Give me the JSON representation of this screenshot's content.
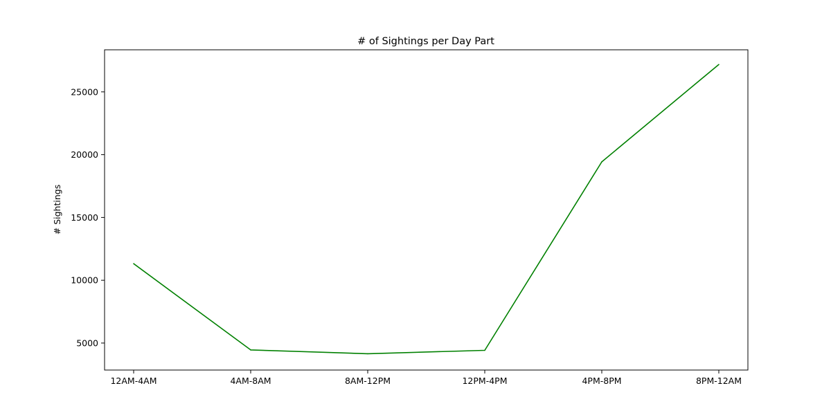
{
  "chart_data": {
    "type": "line",
    "title": "# of Sightings per Day Part",
    "xlabel": "",
    "ylabel": "# Sightings",
    "categories": [
      "12AM-4AM",
      "4AM-8AM",
      "8AM-12PM",
      "12PM-4PM",
      "4PM-8PM",
      "8PM-12AM"
    ],
    "series": [
      {
        "color": "#008000",
        "values": [
          11320,
          4450,
          4150,
          4420,
          19430,
          27180
        ]
      }
    ],
    "ylim": [
      2850,
      28350
    ],
    "yticks": [
      5000,
      10000,
      15000,
      20000,
      25000
    ],
    "grid": false,
    "legend": "none"
  }
}
